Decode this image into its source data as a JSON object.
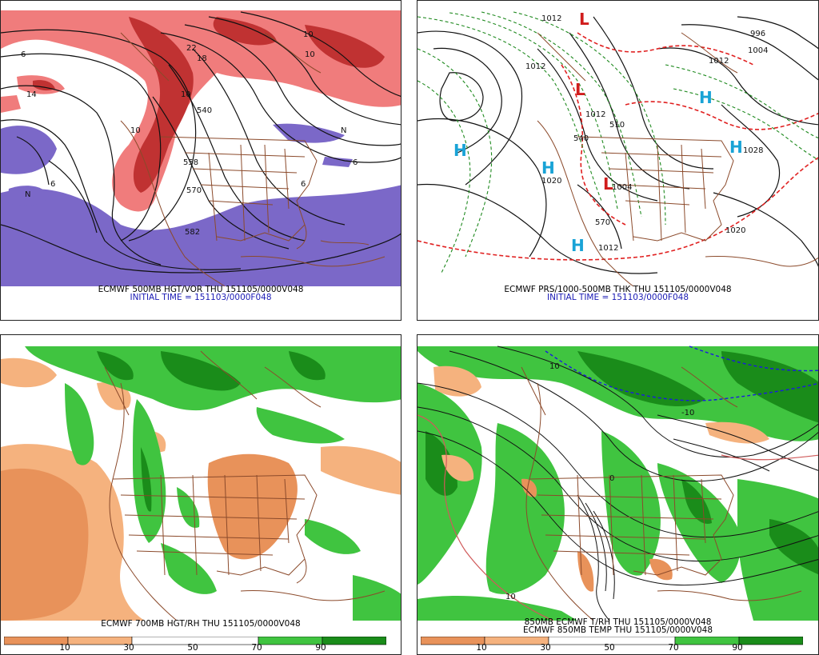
{
  "panels": {
    "top_left": {
      "caption": "ECMWF 500MB HGT/VOR THU 151105/0000V048",
      "initial_time": "INITIAL TIME = 151103/0000F048",
      "labels": [
        "6",
        "10",
        "14",
        "18",
        "22",
        "6",
        "10",
        "540",
        "558",
        "570",
        "582",
        "10",
        "N",
        "6",
        "N",
        "10",
        "6"
      ],
      "colors": {
        "vort_pos_light": "#f07c7c",
        "vort_pos_dark": "#c03232",
        "vort_neg": "#7b68c8",
        "contour": "#111111",
        "border": "#8b4a2b"
      }
    },
    "top_right": {
      "caption": "ECMWF PRS/1000-500MB THK THU 151105/0000V048",
      "initial_time": "INITIAL TIME = 151103/0000F048",
      "highs": [
        "H",
        "H",
        "H",
        "H",
        "H"
      ],
      "lows": [
        "L",
        "L",
        "L"
      ],
      "labels": [
        "1012",
        "1012",
        "1012",
        "1004",
        "996",
        "1012",
        "1020",
        "1004",
        "1028",
        "1020",
        "1012",
        "570",
        "540",
        "510"
      ],
      "colors": {
        "high": "#19a3d6",
        "low": "#d01c1c",
        "thickness_warm": "#e02020",
        "thickness_cold": "#1f8a1f",
        "isobar": "#111111"
      }
    },
    "bottom_left": {
      "caption": "ECMWF 700MB HGT/RH THU 151105/0000V048",
      "colorbar": {
        "ticks": [
          "10",
          "30",
          "50",
          "70",
          "90"
        ]
      },
      "colors": {
        "dry_dark": "#e8925a",
        "dry_light": "#f5b27e",
        "moist_light": "#40c440",
        "moist_dark": "#1a8c1a"
      }
    },
    "bottom_right": {
      "caption": "850MB ECMWF T/RH THU 151105/0000V048",
      "caption2": "ECMWF 850MB TEMP THU 151105/0000V048",
      "colorbar": {
        "ticks": [
          "10",
          "30",
          "50",
          "70",
          "90"
        ]
      },
      "labels": [
        "10",
        "0",
        "-10",
        "10"
      ],
      "colors": {
        "isotherm": "#111111",
        "zero_line": "#1a1ae0",
        "warm_line": "#d05a5a"
      }
    }
  }
}
